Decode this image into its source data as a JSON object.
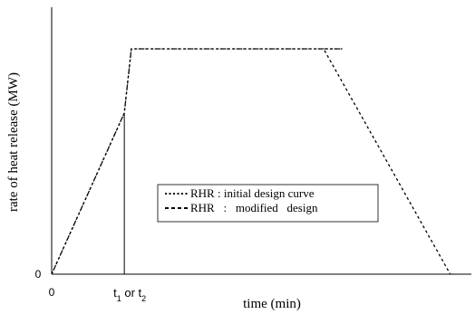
{
  "chart_data": {
    "type": "line",
    "title": "",
    "xlabel": "time (min)",
    "ylabel": "rate of heat release (MW)",
    "x_ticks": [
      {
        "x": 0,
        "label": "0"
      }
    ],
    "y_ticks": [
      {
        "y": 0,
        "label": "0"
      }
    ],
    "annotation": {
      "x": 0.175,
      "y_top": 0.715,
      "label_prefix": "t",
      "label_sub1": "1",
      "label_mid": " or t",
      "label_sub2": "2"
    },
    "xlim": [
      0,
      1
    ],
    "ylim": [
      0,
      1
    ],
    "legend_position": "center-right",
    "grid": false,
    "series": [
      {
        "name": "RHR : initial design curve",
        "style": "dotted",
        "x": [
          0,
          0.175,
          0.192,
          0.7
        ],
        "y": [
          0,
          0.715,
          1.0,
          1.0
        ]
      },
      {
        "name": "RHR   :   modified   design",
        "style": "dashed",
        "x": [
          0,
          0.175,
          0.192,
          0.7,
          0.655,
          0.96
        ],
        "y": [
          0,
          0.715,
          1.0,
          1.0,
          1.0,
          0
        ]
      }
    ]
  }
}
